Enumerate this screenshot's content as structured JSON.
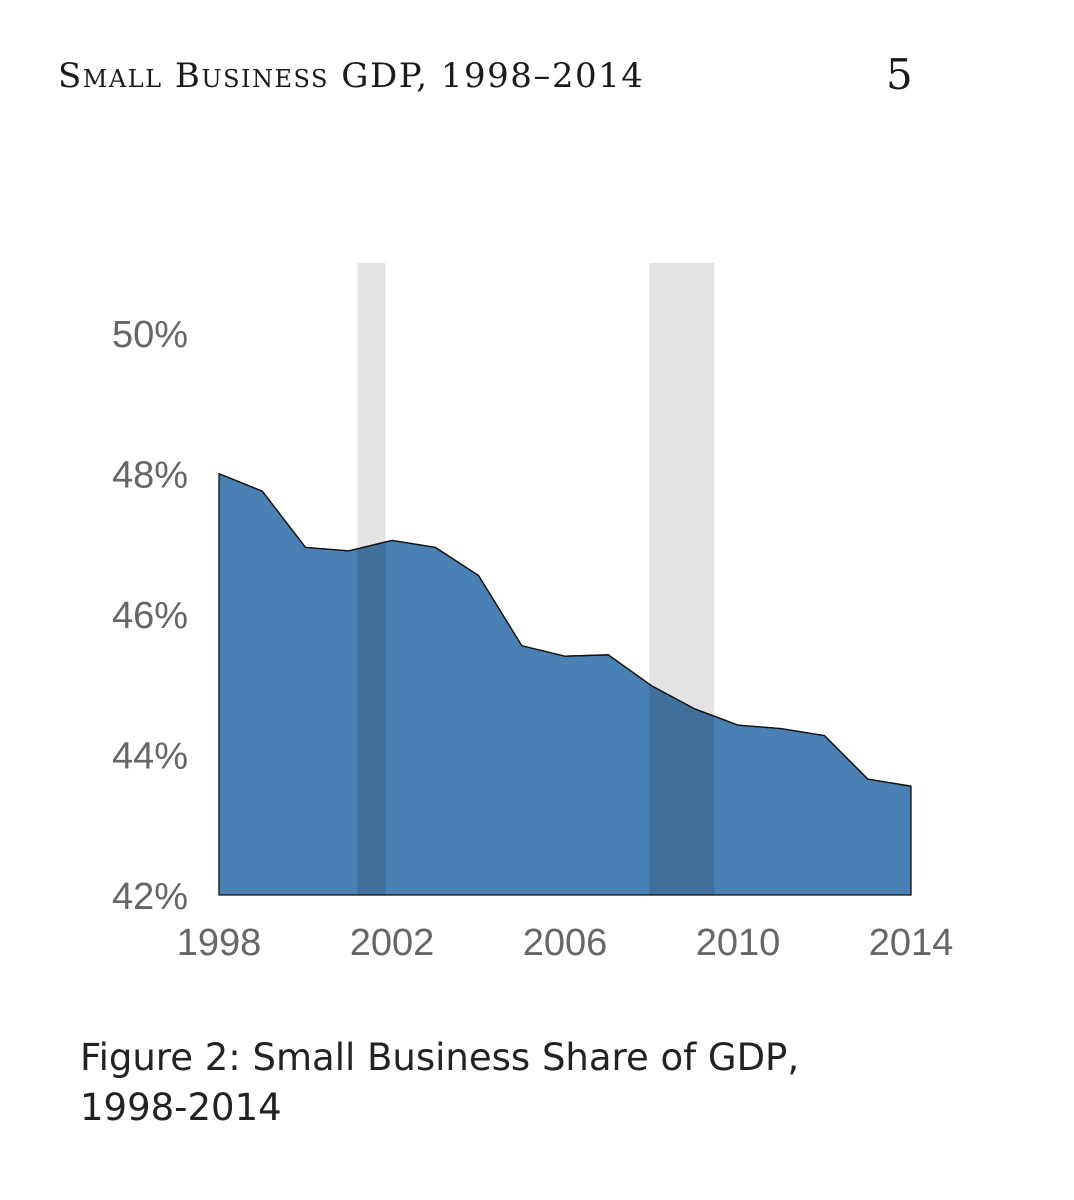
{
  "header": {
    "running_title": "Small Business GDP, 1998–2014",
    "page_number": "5"
  },
  "caption": {
    "line1": "Figure 2: Small Business Share of GDP,",
    "line2": "1998-2014"
  },
  "chart_data": {
    "type": "area",
    "x": [
      1998,
      1999,
      2000,
      2001,
      2002,
      2003,
      2004,
      2005,
      2006,
      2007,
      2008,
      2009,
      2010,
      2011,
      2012,
      2013,
      2014
    ],
    "series": [
      {
        "values": [
          48.0,
          47.75,
          46.95,
          46.9,
          47.05,
          46.95,
          46.55,
          45.55,
          45.4,
          45.42,
          44.98,
          44.65,
          44.42,
          44.37,
          44.27,
          43.65,
          43.55
        ],
        "color": "#4a81b4"
      }
    ],
    "ylim": [
      42,
      51
    ],
    "xlim": [
      1998,
      2014
    ],
    "yticks": [
      42,
      44,
      46,
      48,
      50
    ],
    "ytick_labels": [
      "42%",
      "44%",
      "46%",
      "48%",
      "50%"
    ],
    "xticks": [
      1998,
      2002,
      2006,
      2010,
      2014
    ],
    "xtick_labels": [
      "1998",
      "2002",
      "2006",
      "2010",
      "2014"
    ],
    "recession_bands": [
      {
        "start": 2001.2,
        "end": 2001.85
      },
      {
        "start": 2007.95,
        "end": 2009.45
      }
    ],
    "band_color": "#e4e4e4",
    "grid": false,
    "title": "",
    "xlabel": "",
    "ylabel": ""
  }
}
